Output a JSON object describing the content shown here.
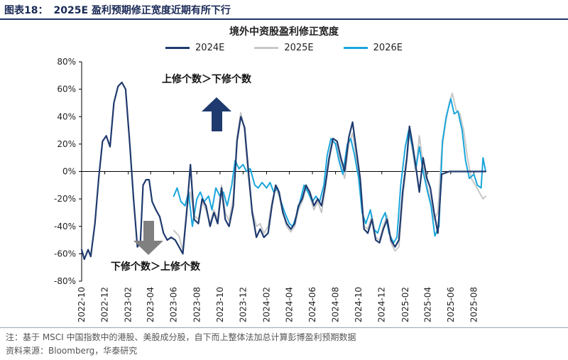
{
  "figure": {
    "label": "图表18：",
    "title": "2025E 盈利预期修正宽度近期有所下行"
  },
  "chart_title": "境外中资股盈利修正宽度",
  "annotations": {
    "up": "上修个数＞下修个数",
    "down": "下修个数＞上修个数"
  },
  "footer": {
    "note": "注：基于 MSCI 中国指数中的港股、美股成分股，自下而上整体法加总计算彭博盈利预期数据",
    "source": "资料来源：Bloomberg，华泰研究"
  },
  "colors": {
    "2024E": "#1f3a6e",
    "2025E": "#c8c8c8",
    "2026E": "#1aa6dc",
    "up_arrow": "#1f3a6e",
    "down_arrow": "#808080"
  },
  "chart_data": {
    "type": "line",
    "title": "境外中资股盈利修正宽度",
    "xlabel": "",
    "ylabel": "",
    "ylim": [
      -80,
      80
    ],
    "y_ticks": [
      80,
      60,
      40,
      20,
      0,
      -20,
      -40,
      -60,
      -80
    ],
    "y_tick_labels": [
      "80%",
      "60%",
      "40%",
      "20%",
      "0%",
      "-20%",
      "-40%",
      "-60%",
      "-80%"
    ],
    "x_range": [
      "2022-10",
      "2025-09"
    ],
    "x_ticks": [
      "2022-10",
      "2022-12",
      "2023-02",
      "2023-04",
      "2023-06",
      "2023-08",
      "2023-10",
      "2023-12",
      "2024-02",
      "2024-04",
      "2024-06",
      "2024-08",
      "2024-10",
      "2024-12",
      "2025-02",
      "2025-04",
      "2025-06",
      "2025-08"
    ],
    "grid": false,
    "legend_position": "top-center",
    "series": [
      {
        "name": "2024E",
        "points": [
          [
            "2022-10",
            -57
          ],
          [
            "2022-10-08",
            -64
          ],
          [
            "2022-10-18",
            -57
          ],
          [
            "2022-10-25",
            -62
          ],
          [
            "2022-11-05",
            -38
          ],
          [
            "2022-11-15",
            -5
          ],
          [
            "2022-11-25",
            22
          ],
          [
            "2022-12-05",
            26
          ],
          [
            "2022-12-15",
            18
          ],
          [
            "2022-12-25",
            50
          ],
          [
            "2023-01-05",
            62
          ],
          [
            "2023-01-15",
            65
          ],
          [
            "2023-01-25",
            60
          ],
          [
            "2023-02-05",
            20
          ],
          [
            "2023-02-15",
            -20
          ],
          [
            "2023-02-25",
            -55
          ],
          [
            "2023-03-05",
            -52
          ],
          [
            "2023-03-12",
            -10
          ],
          [
            "2023-03-20",
            -6
          ],
          [
            "2023-03-28",
            -6
          ],
          [
            "2023-04-05",
            -22
          ],
          [
            "2023-04-15",
            -28
          ],
          [
            "2023-04-25",
            -33
          ],
          [
            "2023-05-05",
            -45
          ],
          [
            "2023-05-15",
            -50
          ],
          [
            "2023-05-25",
            -48
          ],
          [
            "2023-06-05",
            -50
          ],
          [
            "2023-06-15",
            -55
          ],
          [
            "2023-06-25",
            -60
          ],
          [
            "2023-07-05",
            -30
          ],
          [
            "2023-07-15",
            5
          ],
          [
            "2023-07-25",
            -35
          ],
          [
            "2023-08-05",
            -38
          ],
          [
            "2023-08-15",
            -20
          ],
          [
            "2023-08-25",
            -25
          ],
          [
            "2023-09-05",
            -40
          ],
          [
            "2023-09-15",
            -30
          ],
          [
            "2023-09-25",
            -38
          ],
          [
            "2023-10-05",
            -12
          ],
          [
            "2023-10-15",
            -35
          ],
          [
            "2023-10-25",
            -40
          ],
          [
            "2023-11-05",
            -25
          ],
          [
            "2023-11-15",
            22
          ],
          [
            "2023-11-25",
            40
          ],
          [
            "2023-12-05",
            32
          ],
          [
            "2023-12-15",
            0
          ],
          [
            "2023-12-25",
            -30
          ],
          [
            "2024-01-05",
            -48
          ],
          [
            "2024-01-15",
            -42
          ],
          [
            "2024-01-25",
            -48
          ],
          [
            "2024-02-05",
            -45
          ],
          [
            "2024-02-15",
            -25
          ],
          [
            "2024-02-25",
            -10
          ],
          [
            "2024-03-05",
            -15
          ],
          [
            "2024-03-15",
            -30
          ],
          [
            "2024-03-25",
            -38
          ],
          [
            "2024-04-05",
            -42
          ],
          [
            "2024-04-15",
            -38
          ],
          [
            "2024-04-25",
            -25
          ],
          [
            "2024-05-05",
            -20
          ],
          [
            "2024-05-15",
            -10
          ],
          [
            "2024-05-25",
            -15
          ],
          [
            "2024-06-05",
            -25
          ],
          [
            "2024-06-15",
            -20
          ],
          [
            "2024-06-25",
            -25
          ],
          [
            "2024-07-05",
            -10
          ],
          [
            "2024-07-15",
            10
          ],
          [
            "2024-07-25",
            24
          ],
          [
            "2024-08-05",
            22
          ],
          [
            "2024-08-15",
            10
          ],
          [
            "2024-08-25",
            0
          ],
          [
            "2024-09-05",
            25
          ],
          [
            "2024-09-15",
            36
          ],
          [
            "2024-09-25",
            15
          ],
          [
            "2024-10-05",
            -5
          ],
          [
            "2024-10-15",
            -42
          ],
          [
            "2024-10-25",
            -45
          ],
          [
            "2024-11-05",
            -35
          ],
          [
            "2024-11-15",
            -50
          ],
          [
            "2024-11-25",
            -52
          ],
          [
            "2024-12-05",
            -42
          ],
          [
            "2024-12-15",
            -35
          ],
          [
            "2024-12-25",
            -50
          ],
          [
            "2025-01-05",
            -55
          ],
          [
            "2025-01-15",
            -50
          ],
          [
            "2025-01-25",
            -15
          ],
          [
            "2025-02-05",
            10
          ],
          [
            "2025-02-12",
            33
          ],
          [
            "2025-02-20",
            20
          ],
          [
            "2025-02-28",
            5
          ],
          [
            "2025-03-10",
            -15
          ],
          [
            "2025-03-20",
            10
          ],
          [
            "2025-03-30",
            -5
          ],
          [
            "2025-04-08",
            -12
          ],
          [
            "2025-04-18",
            -30
          ],
          [
            "2025-04-28",
            -45
          ],
          [
            "2025-05-08",
            -2
          ],
          [
            "2025-05-18",
            -1
          ],
          [
            "2025-05-28",
            0
          ],
          [
            "2025-06-10",
            0
          ],
          [
            "2025-06-25",
            0
          ],
          [
            "2025-07-10",
            0
          ],
          [
            "2025-07-25",
            0
          ],
          [
            "2025-08-10",
            0
          ],
          [
            "2025-08-25",
            0
          ],
          [
            "2025-09-01",
            0
          ]
        ]
      },
      {
        "name": "2025E",
        "points": [
          [
            "2023-06-01",
            -43
          ],
          [
            "2023-06-15",
            -47
          ],
          [
            "2023-06-25",
            -58
          ],
          [
            "2023-07-05",
            -28
          ],
          [
            "2023-07-15",
            -15
          ],
          [
            "2023-07-25",
            -32
          ],
          [
            "2023-08-05",
            -35
          ],
          [
            "2023-08-15",
            -22
          ],
          [
            "2023-08-25",
            -28
          ],
          [
            "2023-09-05",
            -38
          ],
          [
            "2023-09-15",
            -28
          ],
          [
            "2023-09-25",
            -35
          ],
          [
            "2023-10-05",
            -10
          ],
          [
            "2023-10-15",
            -30
          ],
          [
            "2023-10-25",
            -36
          ],
          [
            "2023-11-05",
            -20
          ],
          [
            "2023-11-15",
            25
          ],
          [
            "2023-11-25",
            43
          ],
          [
            "2023-12-05",
            30
          ],
          [
            "2023-12-15",
            -5
          ],
          [
            "2023-12-25",
            -28
          ],
          [
            "2024-01-05",
            -40
          ],
          [
            "2024-01-15",
            -38
          ],
          [
            "2024-01-25",
            -45
          ],
          [
            "2024-02-05",
            -40
          ],
          [
            "2024-02-15",
            -22
          ],
          [
            "2024-02-25",
            -12
          ],
          [
            "2024-03-05",
            -18
          ],
          [
            "2024-03-15",
            -30
          ],
          [
            "2024-03-25",
            -40
          ],
          [
            "2024-04-05",
            -44
          ],
          [
            "2024-04-15",
            -40
          ],
          [
            "2024-04-25",
            -28
          ],
          [
            "2024-05-05",
            -22
          ],
          [
            "2024-05-15",
            -12
          ],
          [
            "2024-05-25",
            -18
          ],
          [
            "2024-06-05",
            -28
          ],
          [
            "2024-06-15",
            -22
          ],
          [
            "2024-06-25",
            -30
          ],
          [
            "2024-07-05",
            -12
          ],
          [
            "2024-07-15",
            8
          ],
          [
            "2024-07-25",
            22
          ],
          [
            "2024-08-05",
            20
          ],
          [
            "2024-08-15",
            5
          ],
          [
            "2024-08-25",
            -5
          ],
          [
            "2024-09-05",
            20
          ],
          [
            "2024-09-15",
            28
          ],
          [
            "2024-09-25",
            10
          ],
          [
            "2024-10-05",
            -10
          ],
          [
            "2024-10-15",
            -40
          ],
          [
            "2024-10-25",
            -42
          ],
          [
            "2024-11-05",
            -32
          ],
          [
            "2024-11-15",
            -48
          ],
          [
            "2024-11-25",
            -50
          ],
          [
            "2024-12-05",
            -40
          ],
          [
            "2024-12-15",
            -32
          ],
          [
            "2024-12-25",
            -52
          ],
          [
            "2025-01-05",
            -58
          ],
          [
            "2025-01-15",
            -55
          ],
          [
            "2025-01-25",
            -20
          ],
          [
            "2025-02-05",
            8
          ],
          [
            "2025-02-12",
            28
          ],
          [
            "2025-02-20",
            15
          ],
          [
            "2025-02-28",
            0
          ],
          [
            "2025-03-10",
            26
          ],
          [
            "2025-03-20",
            5
          ],
          [
            "2025-03-30",
            -10
          ],
          [
            "2025-04-08",
            -20
          ],
          [
            "2025-04-18",
            -35
          ],
          [
            "2025-04-28",
            -30
          ],
          [
            "2025-05-08",
            15
          ],
          [
            "2025-05-18",
            35
          ],
          [
            "2025-05-28",
            50
          ],
          [
            "2025-06-05",
            57
          ],
          [
            "2025-06-15",
            45
          ],
          [
            "2025-06-25",
            42
          ],
          [
            "2025-07-05",
            30
          ],
          [
            "2025-07-15",
            10
          ],
          [
            "2025-07-25",
            -5
          ],
          [
            "2025-08-05",
            -10
          ],
          [
            "2025-08-15",
            -15
          ],
          [
            "2025-08-25",
            -20
          ],
          [
            "2025-09-01",
            -18
          ]
        ]
      },
      {
        "name": "2026E",
        "points": [
          [
            "2023-06-01",
            -18
          ],
          [
            "2023-06-10",
            -12
          ],
          [
            "2023-06-20",
            -22
          ],
          [
            "2023-07-01",
            -25
          ],
          [
            "2023-07-10",
            -15
          ],
          [
            "2023-07-20",
            -40
          ],
          [
            "2023-08-01",
            -20
          ],
          [
            "2023-08-10",
            -15
          ],
          [
            "2023-08-20",
            -22
          ],
          [
            "2023-09-01",
            -18
          ],
          [
            "2023-09-10",
            -28
          ],
          [
            "2023-09-20",
            -12
          ],
          [
            "2023-10-01",
            -18
          ],
          [
            "2023-10-10",
            -15
          ],
          [
            "2023-10-20",
            -25
          ],
          [
            "2023-11-01",
            -10
          ],
          [
            "2023-11-10",
            8
          ],
          [
            "2023-11-20",
            2
          ],
          [
            "2023-12-01",
            5
          ],
          [
            "2023-12-10",
            0
          ],
          [
            "2023-12-20",
            2
          ],
          [
            "2024-01-01",
            -10
          ],
          [
            "2024-01-10",
            -12
          ],
          [
            "2024-01-20",
            -8
          ],
          [
            "2024-02-01",
            -12
          ],
          [
            "2024-02-10",
            -8
          ],
          [
            "2024-02-20",
            -15
          ],
          [
            "2024-03-01",
            -12
          ],
          [
            "2024-03-10",
            -22
          ],
          [
            "2024-03-20",
            -30
          ],
          [
            "2024-04-01",
            -38
          ],
          [
            "2024-04-10",
            -40
          ],
          [
            "2024-04-20",
            -32
          ],
          [
            "2024-05-01",
            -20
          ],
          [
            "2024-05-10",
            -10
          ],
          [
            "2024-05-20",
            -15
          ],
          [
            "2024-06-01",
            -22
          ],
          [
            "2024-06-10",
            -18
          ],
          [
            "2024-06-20",
            -22
          ],
          [
            "2024-07-01",
            -10
          ],
          [
            "2024-07-10",
            12
          ],
          [
            "2024-07-20",
            24
          ],
          [
            "2024-08-01",
            20
          ],
          [
            "2024-08-10",
            8
          ],
          [
            "2024-08-20",
            -2
          ],
          [
            "2024-09-01",
            20
          ],
          [
            "2024-09-10",
            24
          ],
          [
            "2024-09-20",
            12
          ],
          [
            "2024-10-01",
            -5
          ],
          [
            "2024-10-10",
            -30
          ],
          [
            "2024-10-20",
            -38
          ],
          [
            "2024-11-01",
            -28
          ],
          [
            "2024-11-10",
            -42
          ],
          [
            "2024-11-20",
            -45
          ],
          [
            "2024-12-01",
            -35
          ],
          [
            "2024-12-10",
            -30
          ],
          [
            "2024-12-20",
            -45
          ],
          [
            "2025-01-01",
            -52
          ],
          [
            "2025-01-10",
            -48
          ],
          [
            "2025-01-20",
            -10
          ],
          [
            "2025-02-01",
            18
          ],
          [
            "2025-02-10",
            30
          ],
          [
            "2025-02-20",
            18
          ],
          [
            "2025-03-01",
            2
          ],
          [
            "2025-03-10",
            18
          ],
          [
            "2025-03-20",
            0
          ],
          [
            "2025-04-01",
            -15
          ],
          [
            "2025-04-10",
            -25
          ],
          [
            "2025-04-20",
            -47
          ],
          [
            "2025-05-01",
            -40
          ],
          [
            "2025-05-10",
            22
          ],
          [
            "2025-05-20",
            40
          ],
          [
            "2025-06-01",
            53
          ],
          [
            "2025-06-10",
            42
          ],
          [
            "2025-06-20",
            44
          ],
          [
            "2025-07-01",
            30
          ],
          [
            "2025-07-10",
            8
          ],
          [
            "2025-07-20",
            -5
          ],
          [
            "2025-08-01",
            -2
          ],
          [
            "2025-08-10",
            -10
          ],
          [
            "2025-08-20",
            -12
          ],
          [
            "2025-08-25",
            10
          ],
          [
            "2025-09-01",
            0
          ]
        ]
      }
    ]
  }
}
